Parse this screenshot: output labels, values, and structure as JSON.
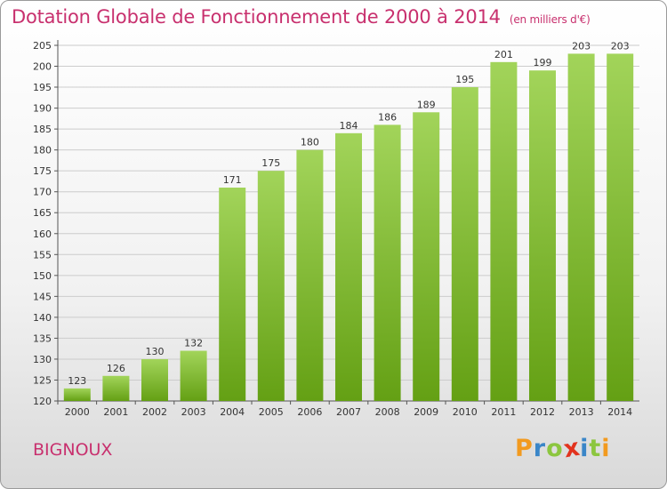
{
  "title": {
    "main": "Dotation Globale de Fonctionnement de 2000 à 2014",
    "unit": "(en milliers d'€)"
  },
  "commune": "BIGNOUX",
  "logo": {
    "letters": [
      "P",
      "r",
      "o",
      "x",
      "i",
      "t",
      "i"
    ],
    "colors": [
      "#f29a1f",
      "#3a86c8",
      "#8cc63f",
      "#e2331e",
      "#3a86c8",
      "#8cc63f",
      "#f29a1f"
    ]
  },
  "colors": {
    "bar_top": "#a2d45a",
    "bar_bottom": "#64a014",
    "title": "#c8306e",
    "grid": "#cccccc"
  },
  "chart_data": {
    "type": "bar",
    "categories": [
      "2000",
      "2001",
      "2002",
      "2003",
      "2004",
      "2005",
      "2006",
      "2007",
      "2008",
      "2009",
      "2010",
      "2011",
      "2012",
      "2013",
      "2014"
    ],
    "values": [
      123,
      126,
      130,
      132,
      171,
      175,
      180,
      184,
      186,
      189,
      195,
      201,
      199,
      203,
      203
    ],
    "ylim": [
      120,
      205
    ],
    "yticks": [
      120,
      125,
      130,
      135,
      140,
      145,
      150,
      155,
      160,
      165,
      170,
      175,
      180,
      185,
      190,
      195,
      200,
      205
    ],
    "grid": true,
    "data_labels": true
  }
}
